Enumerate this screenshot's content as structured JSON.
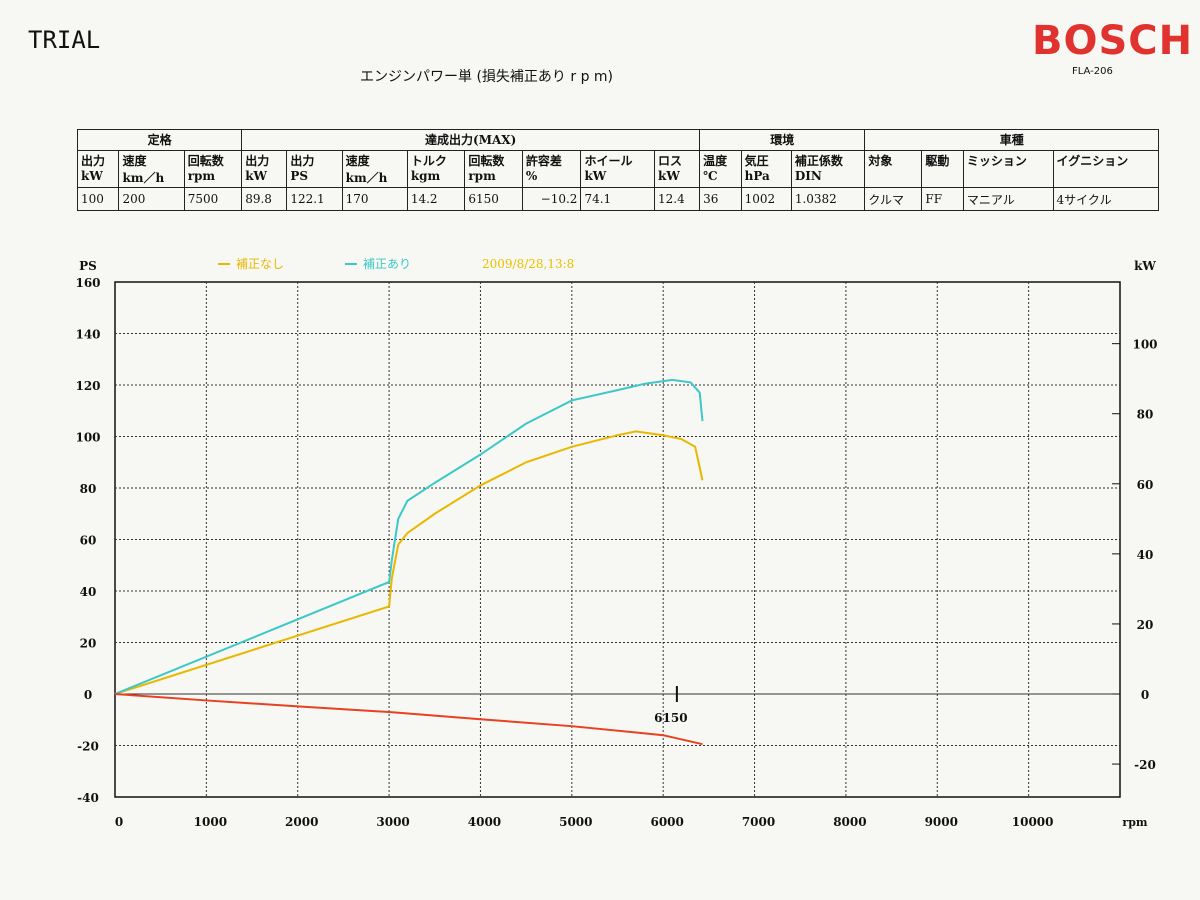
{
  "header": {
    "trial": "TRIAL",
    "brand": "BOSCH",
    "model": "FLA-206",
    "title": "エンジンパワー単 (損失補正あり r p m)"
  },
  "table": {
    "groups": [
      "定格",
      "達成出力(MAX)",
      "環境",
      "車種"
    ],
    "columns": [
      [
        "出力",
        "kW"
      ],
      [
        "速度",
        "km／h"
      ],
      [
        "回転数",
        "rpm"
      ],
      [
        "出力",
        "kW"
      ],
      [
        "出力",
        "PS"
      ],
      [
        "速度",
        "km／h"
      ],
      [
        "トルク",
        "kgm"
      ],
      [
        "回転数",
        "rpm"
      ],
      [
        "許容差",
        "%"
      ],
      [
        "ホイール",
        "kW"
      ],
      [
        "ロス",
        "kW"
      ],
      [
        "温度",
        "℃"
      ],
      [
        "気圧",
        "hPa"
      ],
      [
        "補正係数",
        "DIN"
      ],
      [
        "対象",
        ""
      ],
      [
        "駆動",
        ""
      ],
      [
        "ミッション",
        ""
      ],
      [
        "イグニション",
        ""
      ]
    ],
    "values": [
      "100",
      "200",
      "7500",
      "89.8",
      "122.1",
      "170",
      "14.2",
      "6150",
      "−10.2",
      "74.1",
      "12.4",
      "36",
      "1002",
      "1.0382",
      "クルマ",
      "FF",
      "マニアル",
      "4サイクル"
    ]
  },
  "chart_data": {
    "type": "line",
    "xlabel": "rpm",
    "ylabel": "PS",
    "y2label": "kW",
    "xlim": [
      0,
      11000
    ],
    "ylim": [
      -40,
      160
    ],
    "y2lim": [
      -29.4,
      117.6
    ],
    "xticks": [
      0,
      1000,
      2000,
      3000,
      4000,
      5000,
      6000,
      7000,
      8000,
      9000,
      10000
    ],
    "yticks": [
      160,
      140,
      120,
      100,
      80,
      60,
      40,
      20,
      0,
      -20,
      -40
    ],
    "y2ticks": [
      100,
      80,
      60,
      40,
      20,
      0,
      -20
    ],
    "grid": true,
    "legend_placement": "top",
    "timestamp": "2009/8/28,13:8",
    "marker": {
      "x": 6150,
      "label": "6150"
    },
    "series": [
      {
        "name": "補正なし",
        "color": "#e8b800",
        "x": [
          0,
          3000,
          3030,
          3100,
          3200,
          3500,
          4000,
          4500,
          5000,
          5500,
          5700,
          6000,
          6200,
          6350,
          6430
        ],
        "y": [
          0,
          34,
          45,
          58,
          62.5,
          70,
          81,
          90,
          96,
          100.5,
          102,
          100.5,
          99,
          96,
          83
        ]
      },
      {
        "name": "補正あり",
        "color": "#3cc8c8",
        "x": [
          0,
          3000,
          3030,
          3100,
          3200,
          3500,
          4000,
          4500,
          5000,
          5500,
          5800,
          6100,
          6300,
          6400,
          6430
        ],
        "y": [
          0,
          43.5,
          52,
          68,
          75,
          82,
          93,
          105,
          114,
          118,
          120.5,
          122,
          121,
          117,
          106
        ]
      },
      {
        "color": "#e84020",
        "x": [
          0,
          1000,
          2000,
          3000,
          4000,
          5000,
          6000,
          6430
        ],
        "y": [
          0,
          -2.5,
          -4.8,
          -7,
          -9.8,
          -12.5,
          -16,
          -19.5
        ]
      }
    ]
  }
}
